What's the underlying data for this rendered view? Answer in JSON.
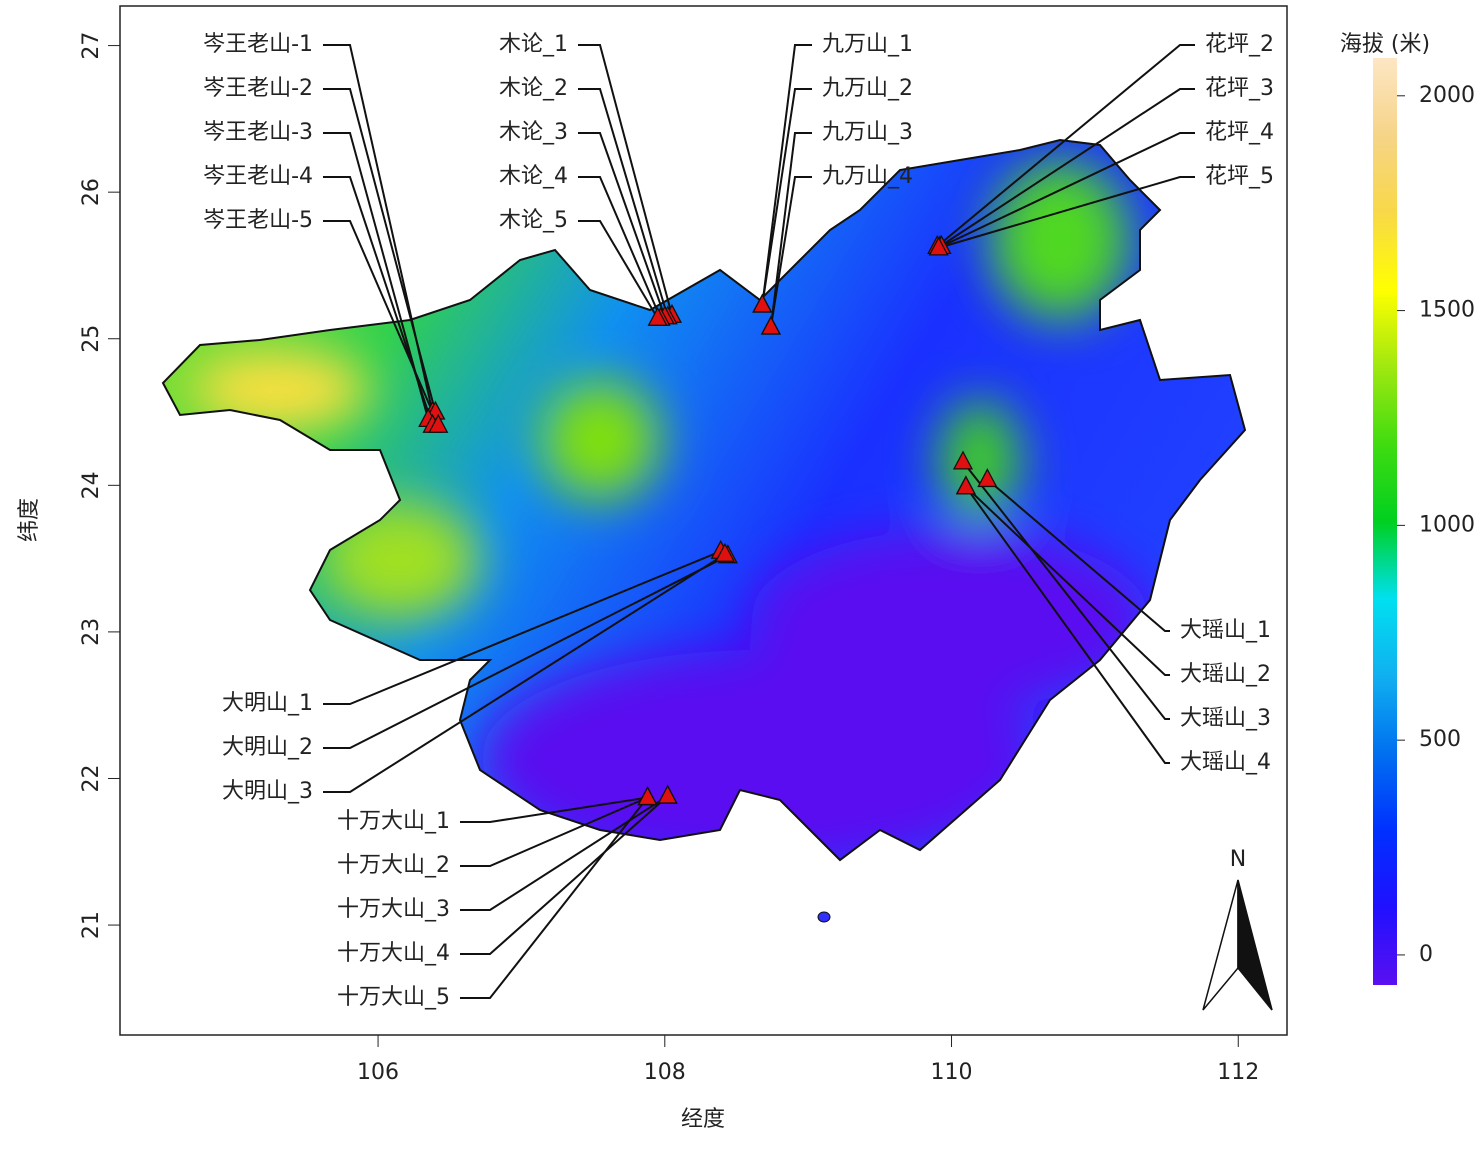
{
  "chart_data": {
    "type": "map",
    "xlabel": "经度",
    "ylabel": "纬度",
    "xlim": [
      104.2,
      112.34
    ],
    "ylim": [
      20.25,
      27.27
    ],
    "xticks": [
      106,
      108,
      110,
      112
    ],
    "yticks": [
      21,
      22,
      23,
      24,
      25,
      26,
      27
    ],
    "north_label": "N",
    "marker_color": "#e01010",
    "points": {
      "labels": [
        "岑王老山-1",
        "岑王老山-2",
        "岑王老山-3",
        "岑王老山-4",
        "岑王老山-5",
        "木论_1",
        "木论_2",
        "木论_3",
        "木论_4",
        "木论_5",
        "九万山_1",
        "九万山_2",
        "九万山_3",
        "九万山_4",
        "花坪_2",
        "花坪_3",
        "花坪_4",
        "花坪_5",
        "大瑶山_1",
        "大瑶山_2",
        "大瑶山_3",
        "大瑶山_4",
        "大明山_1",
        "大明山_2",
        "大明山_3",
        "十万大山_1",
        "十万大山_2",
        "十万大山_3",
        "十万大山_4",
        "十万大山_5"
      ],
      "x": [
        106.38,
        106.4,
        106.35,
        106.38,
        106.42,
        108.05,
        108.02,
        108.0,
        107.97,
        107.95,
        108.68,
        108.68,
        108.74,
        108.74,
        109.9,
        109.92,
        109.93,
        109.91,
        110.25,
        110.1,
        110.08,
        110.1,
        108.39,
        108.44,
        108.42,
        107.88,
        107.88,
        108.02,
        108.02,
        107.88
      ],
      "y": [
        24.5,
        24.5,
        24.45,
        24.41,
        24.41,
        25.16,
        25.15,
        25.15,
        25.14,
        25.14,
        25.23,
        25.23,
        25.08,
        25.08,
        25.63,
        25.63,
        25.63,
        25.62,
        24.04,
        23.99,
        24.16,
        23.99,
        23.55,
        23.52,
        23.53,
        21.87,
        21.87,
        21.88,
        21.88,
        21.87
      ]
    },
    "colorbar": {
      "title": "海拔 (米)",
      "lim": [
        -70,
        2088
      ],
      "ticks": [
        0,
        500,
        1000,
        1500,
        2000
      ],
      "colors": [
        "#5a10f0",
        "#2010ff",
        "#0030ff",
        "#0070f0",
        "#10b0f0",
        "#00e0f0",
        "#00d020",
        "#40dc10",
        "#a0e810",
        "#ffff00",
        "#f8d848",
        "#f6d488",
        "#fde6c4"
      ]
    }
  }
}
